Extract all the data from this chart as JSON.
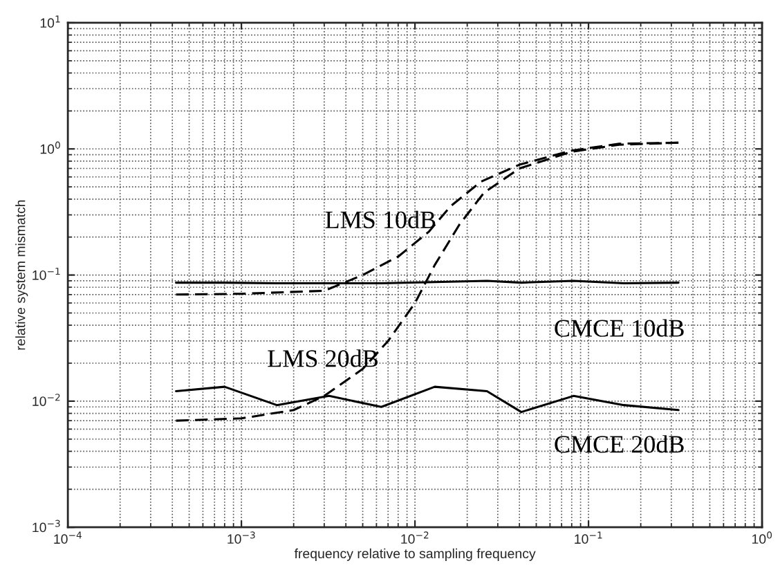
{
  "chart_data": {
    "type": "line",
    "xlabel": "frequency relative to sampling frequency",
    "ylabel": "relative system mismatch",
    "log": "xy",
    "grid": true,
    "legend": false,
    "marker": "none",
    "xlim": [
      0.0001,
      1
    ],
    "ylim": [
      0.001,
      10
    ],
    "xticks": [
      {
        "value": 0.0001,
        "label": "10$^{−4}$"
      },
      {
        "value": 0.001,
        "label": "10$^{−3}$"
      },
      {
        "value": 0.01,
        "label": "10$^{−2}$"
      },
      {
        "value": 0.1,
        "label": "10$^{−1}$"
      },
      {
        "value": 1,
        "label": "10$^{0}$"
      }
    ],
    "yticks": [
      {
        "value": 0.001,
        "label": "10$^{−3}$"
      },
      {
        "value": 0.01,
        "label": "10$^{−2}$"
      },
      {
        "value": 0.1,
        "label": "10$^{−1}$"
      },
      {
        "value": 1,
        "label": "10$^{0}$"
      },
      {
        "value": 10,
        "label": "10$^{1}$"
      }
    ],
    "series": [
      {
        "name": "CMCE 10dB",
        "color": "#000000",
        "line_style": "solid",
        "x": [
          0.00042,
          0.0008,
          0.0016,
          0.0032,
          0.0064,
          0.013,
          0.026,
          0.041,
          0.082,
          0.16,
          0.33
        ],
        "values": [
          0.087,
          0.087,
          0.086,
          0.086,
          0.086,
          0.088,
          0.09,
          0.087,
          0.09,
          0.086,
          0.087
        ]
      },
      {
        "name": "CMCE 20dB",
        "color": "#000000",
        "line_style": "solid",
        "x": [
          0.00042,
          0.0008,
          0.0016,
          0.0032,
          0.0064,
          0.013,
          0.026,
          0.041,
          0.082,
          0.16,
          0.33
        ],
        "values": [
          0.012,
          0.013,
          0.0093,
          0.011,
          0.009,
          0.013,
          0.012,
          0.0082,
          0.011,
          0.0093,
          0.0085
        ]
      },
      {
        "name": "LMS 10dB",
        "color": "#000000",
        "line_style": "dashed",
        "x": [
          0.00042,
          0.001,
          0.003,
          0.005,
          0.008,
          0.012,
          0.016,
          0.024,
          0.04,
          0.08,
          0.15,
          0.33
        ],
        "values": [
          0.07,
          0.071,
          0.075,
          0.1,
          0.14,
          0.22,
          0.35,
          0.55,
          0.75,
          0.97,
          1.1,
          1.12
        ]
      },
      {
        "name": "LMS 20dB",
        "color": "#000000",
        "line_style": "dashed",
        "x": [
          0.00042,
          0.001,
          0.002,
          0.003,
          0.005,
          0.007,
          0.01,
          0.013,
          0.018,
          0.025,
          0.04,
          0.08,
          0.15,
          0.33
        ],
        "values": [
          0.007,
          0.0073,
          0.0085,
          0.011,
          0.018,
          0.03,
          0.06,
          0.12,
          0.25,
          0.45,
          0.7,
          0.95,
          1.08,
          1.12
        ]
      }
    ]
  }
}
